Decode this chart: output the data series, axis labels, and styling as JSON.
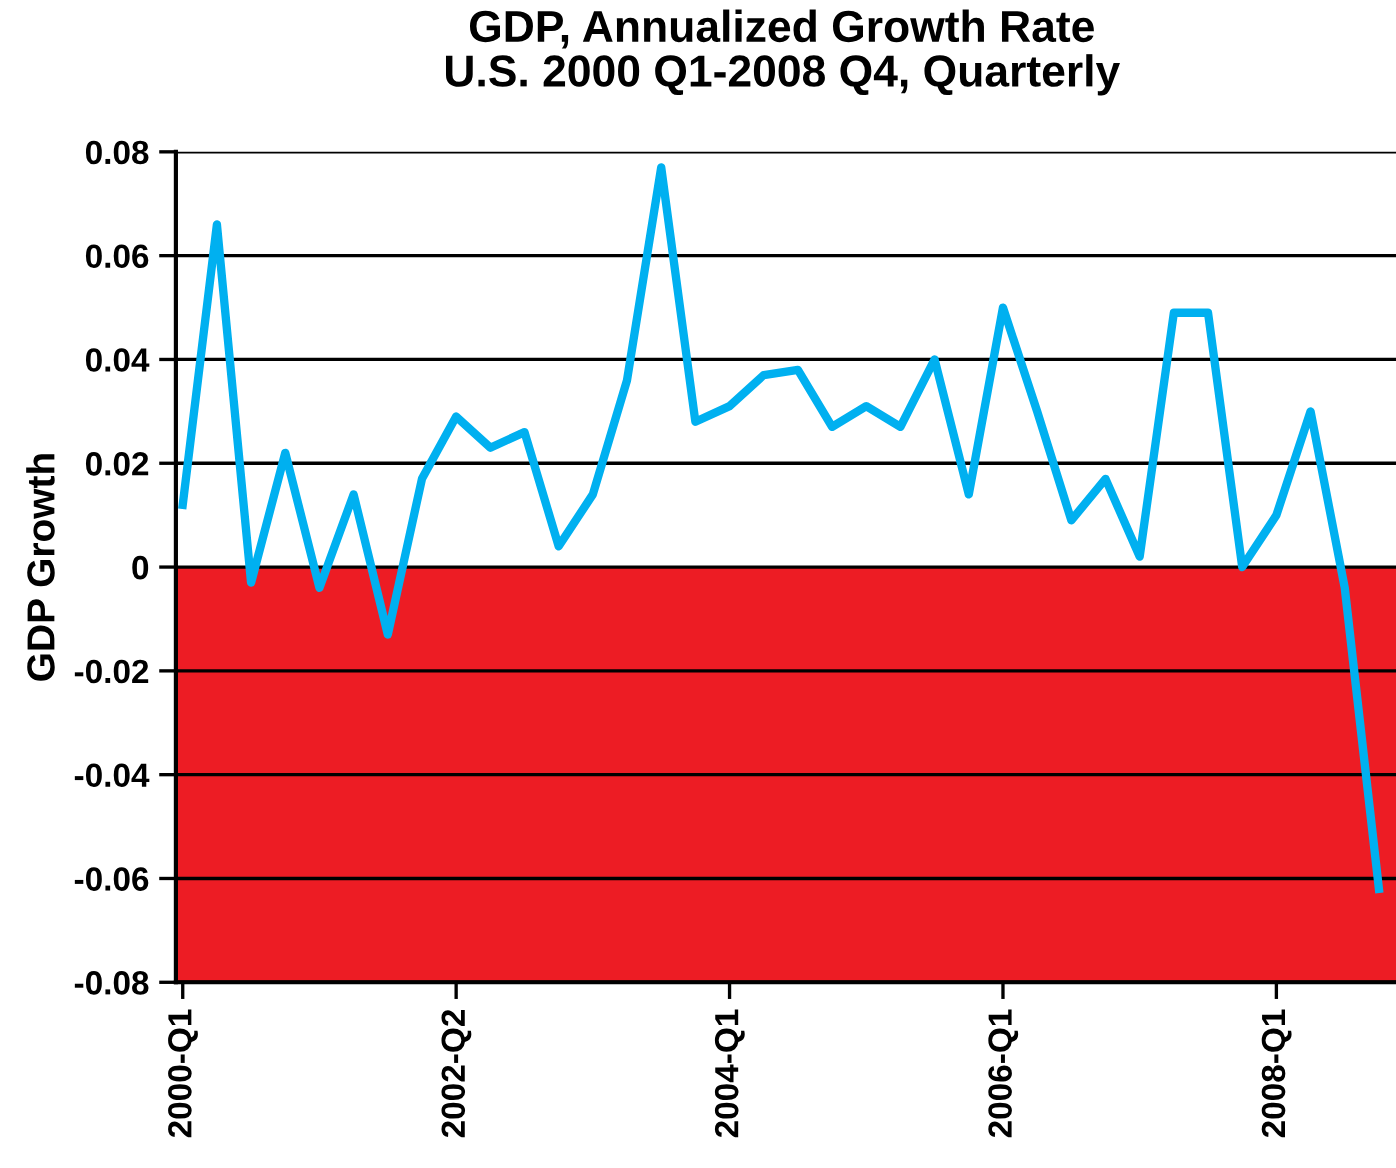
{
  "chart_data": {
    "type": "line",
    "title": "GDP, Annualized Growth Rate\nU.S. 2000 Q1-2008 Q4, Quarterly",
    "ylabel": "GDP Growth",
    "categories": [
      "2000-Q1",
      null,
      null,
      null,
      null,
      null,
      null,
      null,
      "2002-Q2",
      null,
      null,
      null,
      null,
      null,
      null,
      null,
      "2004-Q1",
      null,
      null,
      null,
      null,
      null,
      null,
      null,
      "2006-Q1",
      null,
      null,
      null,
      null,
      null,
      null,
      null,
      "2008-Q1",
      null,
      null,
      null
    ],
    "series": [
      {
        "color": "#00b0f0",
        "values": [
          0.012,
          0.066,
          -0.003,
          0.022,
          -0.004,
          0.014,
          -0.013,
          0.017,
          0.029,
          0.023,
          0.026,
          0.004,
          0.014,
          0.036,
          0.077,
          0.028,
          0.031,
          0.037,
          0.038,
          0.027,
          0.031,
          0.027,
          0.04,
          0.014,
          0.05,
          0.03,
          0.009,
          0.017,
          0.002,
          0.049,
          0.049,
          0.0,
          0.01,
          0.03,
          -0.004,
          -0.062
        ]
      }
    ],
    "ylim": [
      -0.08,
      0.08
    ],
    "yticks": [
      {
        "value": -0.08,
        "label": "-0.08"
      },
      {
        "value": -0.06,
        "label": "-0.06"
      },
      {
        "value": -0.04,
        "label": "-0.04"
      },
      {
        "value": -0.02,
        "label": "-0.02"
      },
      0,
      {
        "value": 0.02,
        "label": "0.02"
      },
      {
        "value": 0.04,
        "label": "0.04"
      },
      {
        "value": 0.06,
        "label": "0.06"
      },
      {
        "value": 0.08,
        "label": "0.08"
      }
    ],
    "bands": [
      {
        "axis": "y",
        "from": -0.08,
        "to": 0,
        "color": "#ed1c24"
      }
    ],
    "grid": "y",
    "marker": "none",
    "line_style": "solid"
  }
}
